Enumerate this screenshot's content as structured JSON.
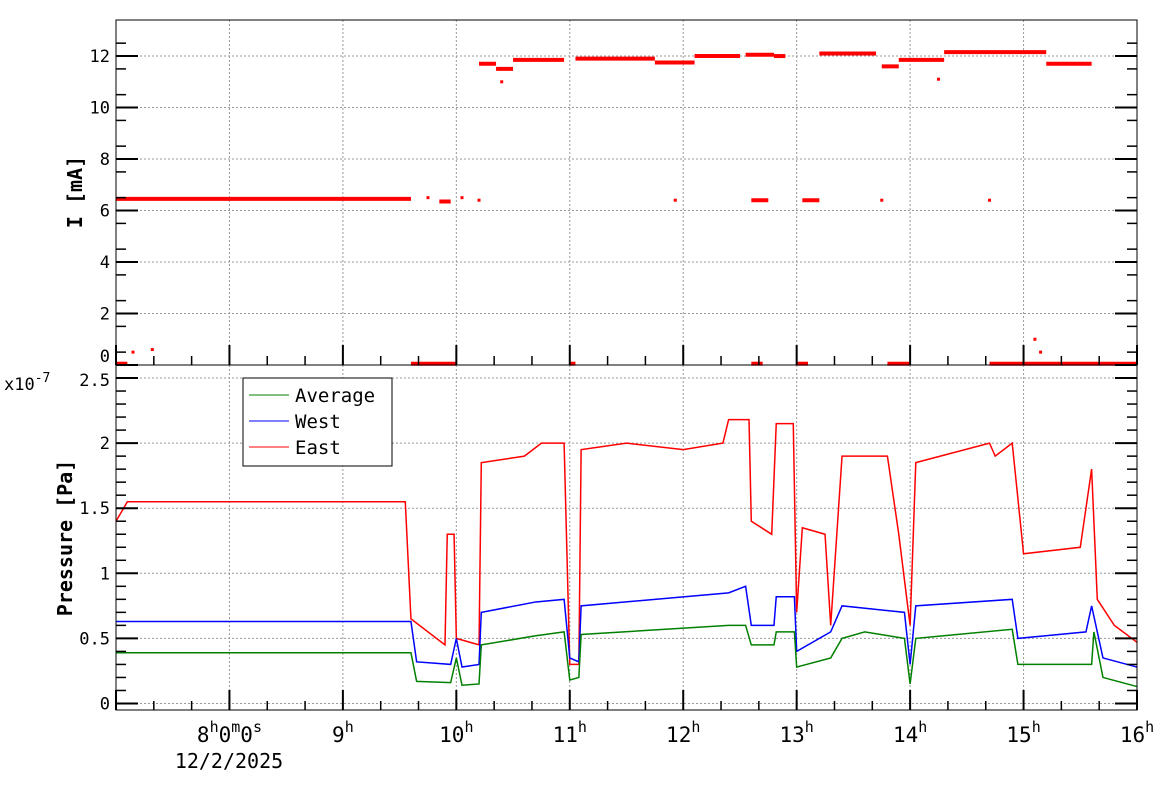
{
  "chart_data": [
    {
      "type": "scatter",
      "ylabel": "I [mA]",
      "xlim_hours": [
        7,
        16
      ],
      "ylim": [
        0,
        13.4
      ],
      "yticks": [
        "0",
        "2",
        "4",
        "6",
        "8",
        "10",
        "12"
      ],
      "grid": true,
      "color": "#ff0000",
      "segments": [
        [
          7.0,
          9.6,
          6.45
        ],
        [
          9.85,
          9.95,
          6.35
        ],
        [
          10.2,
          10.35,
          11.7
        ],
        [
          10.35,
          10.5,
          11.5
        ],
        [
          10.5,
          10.95,
          11.85
        ],
        [
          11.05,
          11.75,
          11.9
        ],
        [
          11.75,
          12.1,
          11.75
        ],
        [
          12.1,
          12.5,
          12.0
        ],
        [
          12.55,
          12.8,
          12.05
        ],
        [
          12.8,
          12.9,
          12.0
        ],
        [
          13.2,
          13.7,
          12.1
        ],
        [
          13.75,
          13.9,
          11.6
        ],
        [
          13.9,
          14.3,
          11.85
        ],
        [
          14.3,
          15.2,
          12.15
        ],
        [
          15.2,
          15.6,
          11.7
        ],
        [
          12.6,
          12.75,
          6.4
        ],
        [
          13.05,
          13.2,
          6.4
        ],
        [
          9.6,
          10.0,
          0.05
        ],
        [
          11.0,
          11.05,
          0.05
        ],
        [
          12.6,
          12.7,
          0.05
        ],
        [
          13.0,
          13.1,
          0.05
        ],
        [
          13.8,
          14.0,
          0.05
        ],
        [
          14.7,
          16.0,
          0.05
        ],
        [
          7.0,
          7.1,
          0.05
        ]
      ],
      "points": [
        [
          7.15,
          0.5
        ],
        [
          7.32,
          0.6
        ],
        [
          9.75,
          6.5
        ],
        [
          10.05,
          6.5
        ],
        [
          10.2,
          6.4
        ],
        [
          11.93,
          6.4
        ],
        [
          13.75,
          6.4
        ],
        [
          14.7,
          6.4
        ],
        [
          15.1,
          1.0
        ],
        [
          15.15,
          0.5
        ],
        [
          10.4,
          11.0
        ],
        [
          14.25,
          11.1
        ]
      ]
    },
    {
      "type": "line",
      "ylabel": "Pressure [Pa]",
      "multiplier": "x10",
      "exponent": "-7",
      "ylim": [
        -0.05,
        2.6
      ],
      "yticks": [
        "0",
        "0.5",
        "1",
        "1.5",
        "2",
        "2.5"
      ],
      "xlim_hours": [
        7,
        16
      ],
      "xticks": [
        {
          "h": 8,
          "label": "8",
          "sup1": "h",
          "rest": "0",
          "sup2": "m",
          "rest2": "0",
          "sup3": "s"
        },
        {
          "h": 9,
          "label": "9"
        },
        {
          "h": 10,
          "label": "10"
        },
        {
          "h": 11,
          "label": "11"
        },
        {
          "h": 12,
          "label": "12"
        },
        {
          "h": 13,
          "label": "13"
        },
        {
          "h": 14,
          "label": "14"
        },
        {
          "h": 15,
          "label": "15"
        },
        {
          "h": 16,
          "label": "16"
        }
      ],
      "hour_suffix": "h",
      "date_label": "12/2/2025",
      "grid": true,
      "legend_placement": "top-left",
      "series": [
        {
          "name": "Average",
          "color": "#008000",
          "points": [
            [
              7.0,
              0.39
            ],
            [
              9.6,
              0.39
            ],
            [
              9.65,
              0.17
            ],
            [
              9.95,
              0.16
            ],
            [
              10.0,
              0.35
            ],
            [
              10.05,
              0.14
            ],
            [
              10.2,
              0.15
            ],
            [
              10.22,
              0.45
            ],
            [
              10.7,
              0.52
            ],
            [
              10.95,
              0.55
            ],
            [
              11.0,
              0.18
            ],
            [
              11.08,
              0.2
            ],
            [
              11.1,
              0.53
            ],
            [
              12.4,
              0.6
            ],
            [
              12.55,
              0.6
            ],
            [
              12.6,
              0.45
            ],
            [
              12.8,
              0.45
            ],
            [
              12.82,
              0.55
            ],
            [
              12.98,
              0.55
            ],
            [
              13.0,
              0.28
            ],
            [
              13.3,
              0.35
            ],
            [
              13.4,
              0.5
            ],
            [
              13.6,
              0.55
            ],
            [
              13.95,
              0.5
            ],
            [
              14.0,
              0.15
            ],
            [
              14.05,
              0.5
            ],
            [
              14.9,
              0.57
            ],
            [
              14.95,
              0.3
            ],
            [
              15.6,
              0.3
            ],
            [
              15.62,
              0.55
            ],
            [
              15.7,
              0.2
            ],
            [
              16.0,
              0.13
            ]
          ]
        },
        {
          "name": "West",
          "color": "#0000ff",
          "points": [
            [
              7.0,
              0.63
            ],
            [
              9.6,
              0.63
            ],
            [
              9.65,
              0.32
            ],
            [
              9.95,
              0.3
            ],
            [
              10.0,
              0.5
            ],
            [
              10.05,
              0.28
            ],
            [
              10.2,
              0.3
            ],
            [
              10.22,
              0.7
            ],
            [
              10.7,
              0.78
            ],
            [
              10.95,
              0.8
            ],
            [
              11.0,
              0.35
            ],
            [
              11.08,
              0.32
            ],
            [
              11.1,
              0.75
            ],
            [
              12.4,
              0.85
            ],
            [
              12.55,
              0.9
            ],
            [
              12.6,
              0.6
            ],
            [
              12.8,
              0.6
            ],
            [
              12.82,
              0.82
            ],
            [
              12.98,
              0.82
            ],
            [
              13.0,
              0.4
            ],
            [
              13.3,
              0.55
            ],
            [
              13.4,
              0.75
            ],
            [
              13.95,
              0.7
            ],
            [
              14.0,
              0.3
            ],
            [
              14.05,
              0.75
            ],
            [
              14.9,
              0.8
            ],
            [
              14.95,
              0.5
            ],
            [
              15.55,
              0.55
            ],
            [
              15.6,
              0.75
            ],
            [
              15.7,
              0.35
            ],
            [
              16.0,
              0.28
            ]
          ]
        },
        {
          "name": "East",
          "color": "#ff0000",
          "points": [
            [
              7.0,
              1.4
            ],
            [
              7.1,
              1.55
            ],
            [
              9.55,
              1.55
            ],
            [
              9.6,
              0.65
            ],
            [
              9.9,
              0.45
            ],
            [
              9.92,
              1.3
            ],
            [
              9.98,
              1.3
            ],
            [
              10.0,
              0.5
            ],
            [
              10.2,
              0.45
            ],
            [
              10.22,
              1.85
            ],
            [
              10.6,
              1.9
            ],
            [
              10.75,
              2.0
            ],
            [
              10.95,
              2.0
            ],
            [
              11.0,
              0.3
            ],
            [
              11.08,
              0.3
            ],
            [
              11.1,
              1.95
            ],
            [
              11.5,
              2.0
            ],
            [
              12.0,
              1.95
            ],
            [
              12.35,
              2.0
            ],
            [
              12.4,
              2.18
            ],
            [
              12.58,
              2.18
            ],
            [
              12.6,
              1.4
            ],
            [
              12.78,
              1.3
            ],
            [
              12.82,
              2.15
            ],
            [
              12.97,
              2.15
            ],
            [
              13.0,
              0.7
            ],
            [
              13.05,
              1.35
            ],
            [
              13.25,
              1.3
            ],
            [
              13.3,
              0.6
            ],
            [
              13.4,
              1.9
            ],
            [
              13.8,
              1.9
            ],
            [
              13.9,
              1.3
            ],
            [
              14.0,
              0.6
            ],
            [
              14.05,
              1.85
            ],
            [
              14.7,
              2.0
            ],
            [
              14.75,
              1.9
            ],
            [
              14.9,
              2.0
            ],
            [
              15.0,
              1.15
            ],
            [
              15.5,
              1.2
            ],
            [
              15.6,
              1.8
            ],
            [
              15.65,
              0.8
            ],
            [
              15.8,
              0.6
            ],
            [
              16.0,
              0.47
            ]
          ]
        }
      ]
    }
  ]
}
